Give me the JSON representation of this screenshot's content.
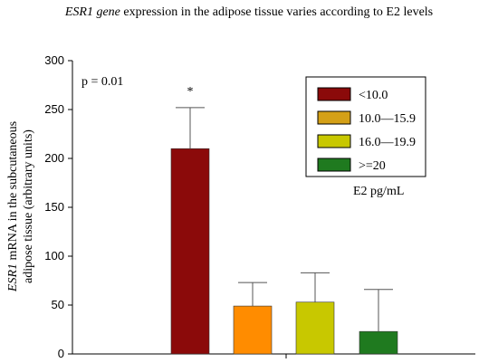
{
  "chart_data": {
    "type": "bar",
    "title_italic": "ESR1 gene",
    "title_rest": " expression in the adipose tissue varies according to E2 levels",
    "ylabel_italic": "ESR1",
    "ylabel_line1_rest": " mRNA in the subcutaneous",
    "ylabel_line2": "adipose tissue (arbitrary units)",
    "xlabel": "",
    "ylim": [
      0,
      300
    ],
    "yticks": [
      "0",
      "50",
      "100",
      "150",
      "200",
      "250",
      "300"
    ],
    "categories": [
      "<10.0",
      "10.0—15.9",
      "16.0—19.9",
      ">=20"
    ],
    "values": [
      210,
      49,
      53,
      23
    ],
    "errors": [
      42,
      24,
      30,
      43
    ],
    "colors": [
      "#8b0a0a",
      "#ff8c00",
      "#c8c800",
      "#1f7a1f"
    ],
    "legend_swatch_colors": [
      "#8b0a0a",
      "#d4a017",
      "#c8c800",
      "#1f7a1f"
    ],
    "legend_title": "E2 pg/mL",
    "legend_position": "top-right",
    "annotation_p": "p = 0.01",
    "significance_marker": "*",
    "grid": false
  }
}
